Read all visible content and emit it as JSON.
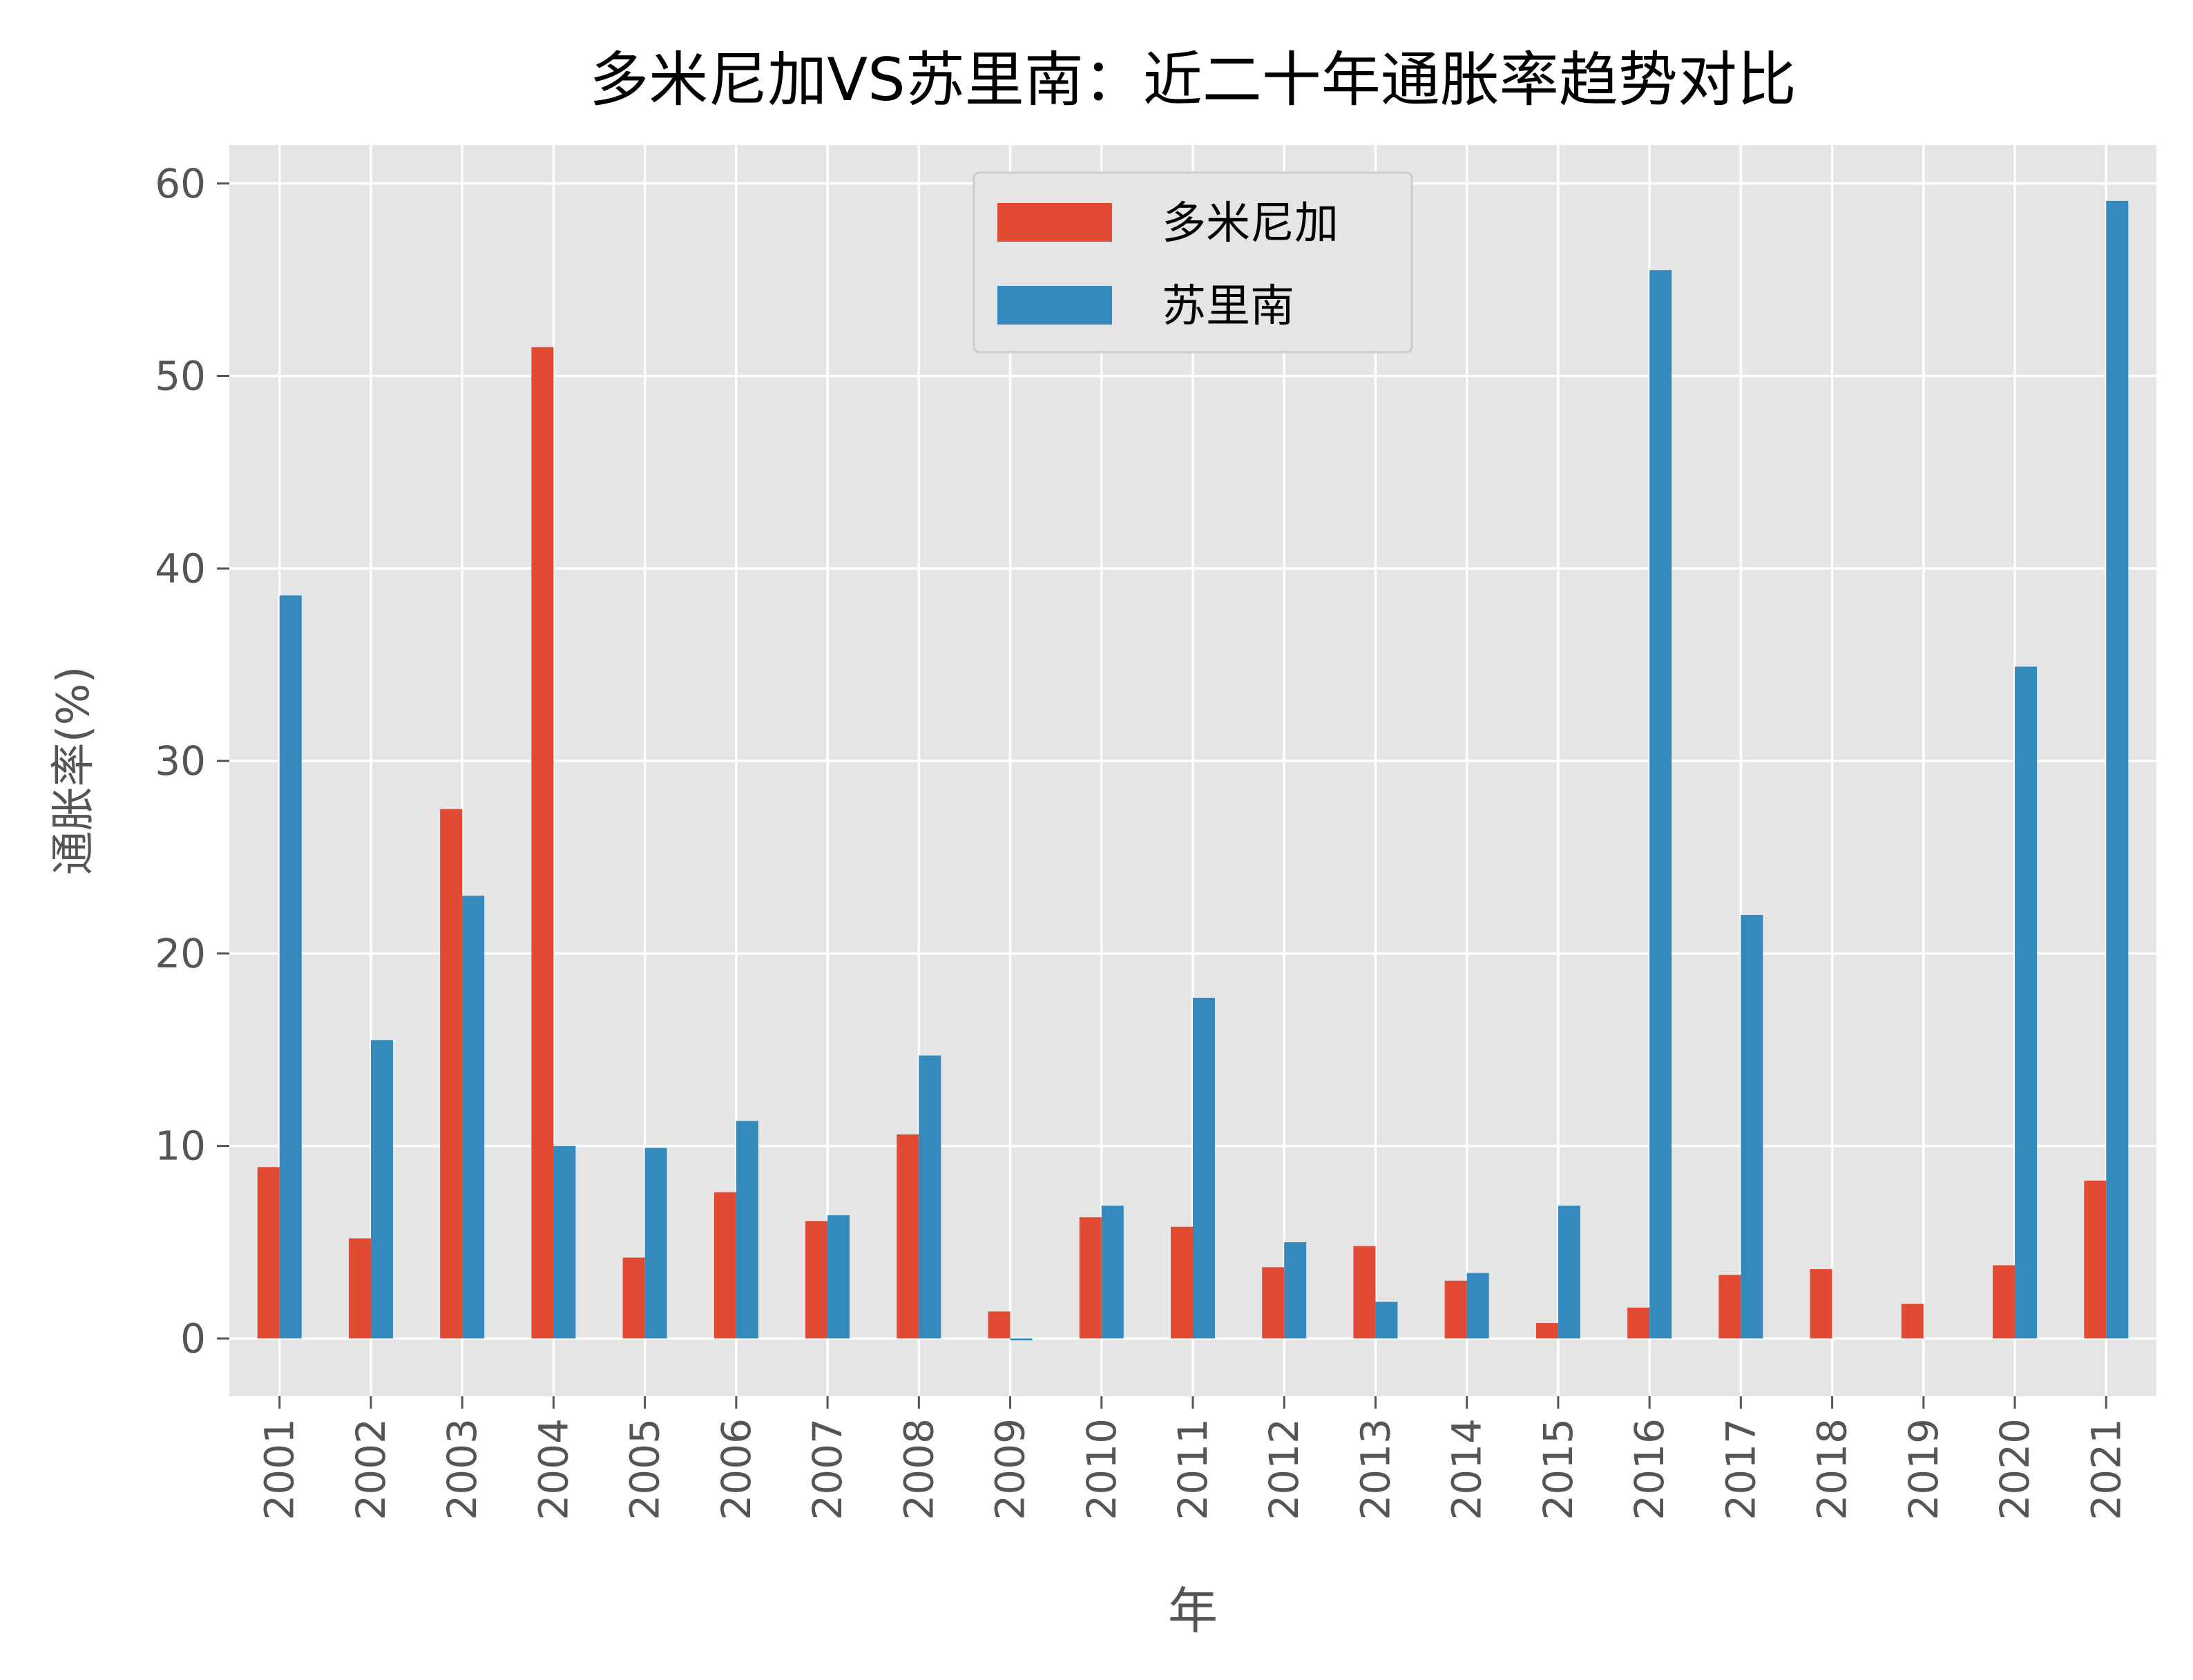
{
  "chart_data": {
    "type": "bar",
    "title": "多米尼加VS苏里南：近二十年通胀率趋势对比",
    "xlabel": "年",
    "ylabel": "通胀率(%)",
    "categories": [
      "2001",
      "2002",
      "2003",
      "2004",
      "2005",
      "2006",
      "2007",
      "2008",
      "2009",
      "2010",
      "2011",
      "2012",
      "2013",
      "2014",
      "2015",
      "2016",
      "2017",
      "2018",
      "2019",
      "2020",
      "2021"
    ],
    "series": [
      {
        "name": "多米尼加",
        "color": "#E24A33",
        "values": [
          8.9,
          5.2,
          27.5,
          51.5,
          4.2,
          7.6,
          6.1,
          10.6,
          1.4,
          6.3,
          5.8,
          3.7,
          4.8,
          3.0,
          0.8,
          1.6,
          3.3,
          3.6,
          1.8,
          3.8,
          8.2
        ]
      },
      {
        "name": "苏里南",
        "color": "#348ABD",
        "values": [
          38.6,
          15.5,
          23.0,
          10.0,
          9.9,
          11.3,
          6.4,
          14.7,
          -0.1,
          6.9,
          17.7,
          5.0,
          1.9,
          3.4,
          6.9,
          55.5,
          22.0,
          null,
          null,
          34.9,
          59.1
        ]
      }
    ],
    "ylim": [
      -3,
      62
    ],
    "yticks": [
      0,
      10,
      20,
      30,
      40,
      50,
      60
    ],
    "legend": "top-center",
    "grid": true
  }
}
